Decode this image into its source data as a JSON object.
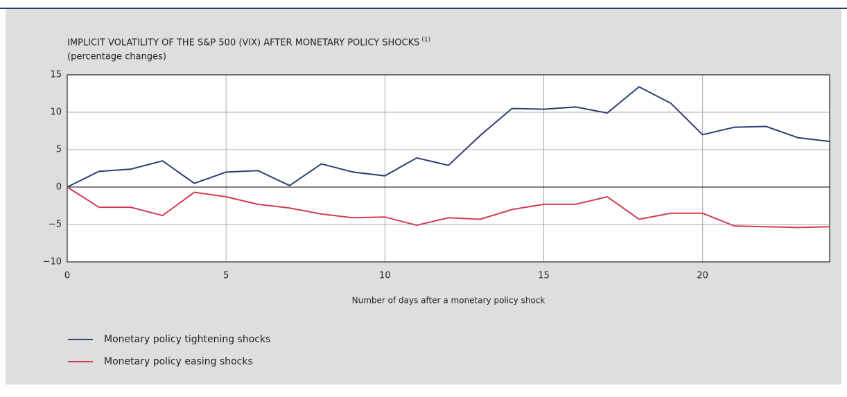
{
  "chart_data": {
    "type": "line",
    "title": "IMPLICIT VOLATILITY OF THE S&P 500 (VIX) AFTER MONETARY POLICY SHOCKS",
    "title_superscript": "(1)",
    "subtitle": "(percentage changes)",
    "x_label": "Number of days after a monetary policy shock",
    "x": [
      0,
      1,
      2,
      3,
      4,
      5,
      6,
      7,
      8,
      9,
      10,
      11,
      12,
      13,
      14,
      15,
      16,
      17,
      18,
      19,
      20,
      21,
      22,
      23,
      24
    ],
    "series": [
      {
        "name": "Monetary policy tightening shocks",
        "color": "#2b3f73",
        "values": [
          0,
          2.1,
          2.4,
          3.5,
          0.5,
          2.0,
          2.2,
          0.2,
          3.1,
          2.0,
          1.5,
          3.9,
          2.9,
          6.9,
          10.5,
          10.4,
          10.7,
          9.9,
          13.4,
          11.2,
          7.0,
          8.0,
          8.1,
          6.6,
          6.1
        ]
      },
      {
        "name": "Monetary policy easing shocks",
        "color": "#d23c50",
        "values": [
          0,
          -2.7,
          -2.7,
          -3.8,
          -0.7,
          -1.3,
          -2.3,
          -2.8,
          -3.6,
          -4.1,
          -4.0,
          -5.1,
          -4.1,
          -4.3,
          -3.0,
          -2.3,
          -2.3,
          -1.3,
          -4.3,
          -3.5,
          -3.5,
          -5.2,
          -5.3,
          -5.4,
          -5.3
        ]
      }
    ],
    "xlim": [
      0,
      24
    ],
    "xticks": [
      0,
      5,
      10,
      15,
      20
    ],
    "ylim": [
      -10,
      15
    ],
    "yticks": [
      {
        "value": -10,
        "label": "−10"
      },
      {
        "value": -5,
        "label": "−5"
      },
      0,
      5,
      10,
      15
    ],
    "grid": true
  }
}
